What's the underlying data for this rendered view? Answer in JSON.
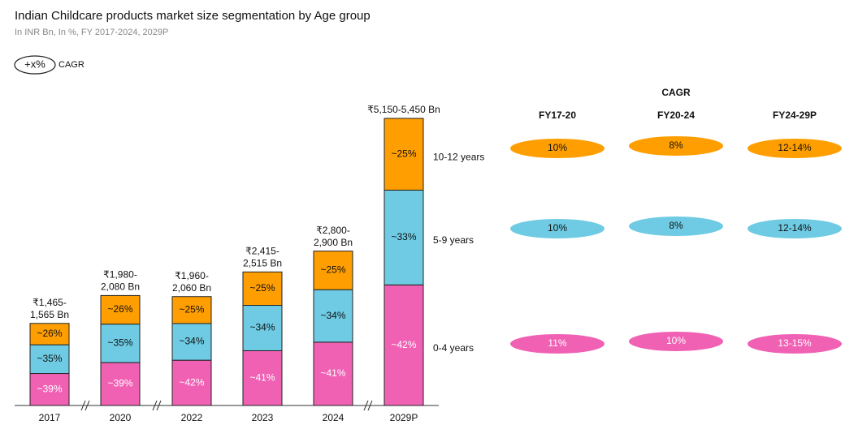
{
  "chart_data": {
    "type": "stacked_bar",
    "title": "Indian Childcare products market size segmentation by Age group",
    "subtitle": "In INR Bn, In %, FY 2017-2024, 2029P",
    "legend_badge": "+x%",
    "legend_badge_text": "CAGR",
    "categories": [
      "2017",
      "2020",
      "2022",
      "2023",
      "2024",
      "2029P"
    ],
    "series": [
      {
        "name": "0-4 years",
        "color": "#f061b4",
        "values": [
          39,
          39,
          42,
          41,
          41,
          42
        ],
        "value_labels": [
          "~39%",
          "~39%",
          "~42%",
          "~41%",
          "~41%",
          "~42%"
        ]
      },
      {
        "name": "5-9 years",
        "color": "#6ecbe3",
        "values": [
          35,
          35,
          34,
          34,
          34,
          33
        ],
        "value_labels": [
          "~35%",
          "~35%",
          "~34%",
          "~34%",
          "~34%",
          "~33%"
        ]
      },
      {
        "name": "10-12 years",
        "color": "#ff9e00",
        "values": [
          26,
          26,
          25,
          25,
          25,
          25
        ],
        "value_labels": [
          "~26%",
          "~26%",
          "~25%",
          "~25%",
          "~25%",
          "~25%"
        ]
      }
    ],
    "totals": [
      {
        "low": 1465,
        "high": 1565,
        "label": [
          "₹1,465-",
          "1,565 Bn"
        ]
      },
      {
        "low": 1980,
        "high": 2080,
        "label": [
          "₹1,980-",
          "2,080 Bn"
        ]
      },
      {
        "low": 1960,
        "high": 2060,
        "label": [
          "₹1,960-",
          "2,060 Bn"
        ]
      },
      {
        "low": 2415,
        "high": 2515,
        "label": [
          "₹2,415-",
          "2,515 Bn"
        ]
      },
      {
        "low": 2800,
        "high": 2900,
        "label": [
          "₹2,800-",
          "2,900 Bn"
        ]
      },
      {
        "low": 5150,
        "high": 5450,
        "label": [
          "₹5,150-5,450 Bn"
        ]
      }
    ],
    "cagr": {
      "title": "CAGR",
      "periods": [
        "FY17-20",
        "FY20-24",
        "FY24-29P"
      ],
      "rows": [
        [
          "11%",
          "10%",
          "13-15%"
        ],
        [
          "10%",
          "8%",
          "12-14%"
        ],
        [
          "10%",
          "8%",
          "12-14%"
        ]
      ]
    }
  }
}
